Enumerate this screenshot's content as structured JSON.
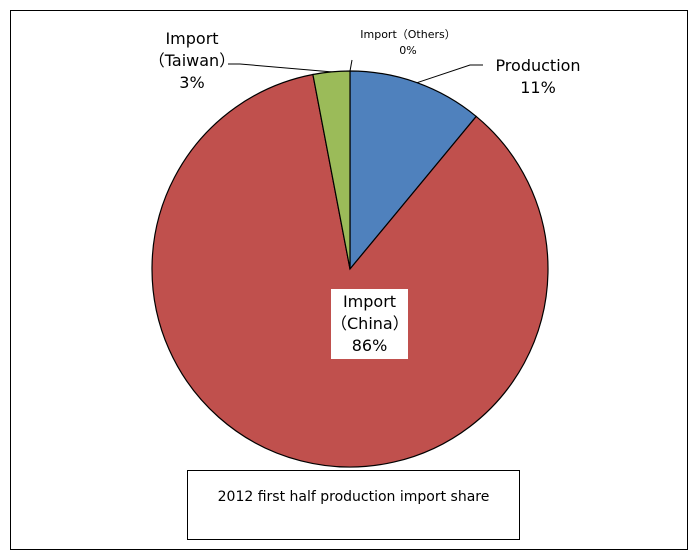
{
  "chart_data": {
    "type": "pie",
    "title": "2012 first half production import share",
    "slices": [
      {
        "name": "Production",
        "name_line2": "",
        "value": 11,
        "label": "11%",
        "color": "#4F81BD"
      },
      {
        "name": "Import",
        "name_line2": "（China）",
        "value": 86,
        "label": "86%",
        "color": "#C0504D"
      },
      {
        "name": "Import",
        "name_line2": "（Taiwan）",
        "value": 3,
        "label": "3%",
        "color": "#9BBB59"
      },
      {
        "name": "Import（Others）",
        "name_line2": "",
        "value": 0,
        "label": "0%",
        "color": "#8064A2"
      }
    ]
  }
}
